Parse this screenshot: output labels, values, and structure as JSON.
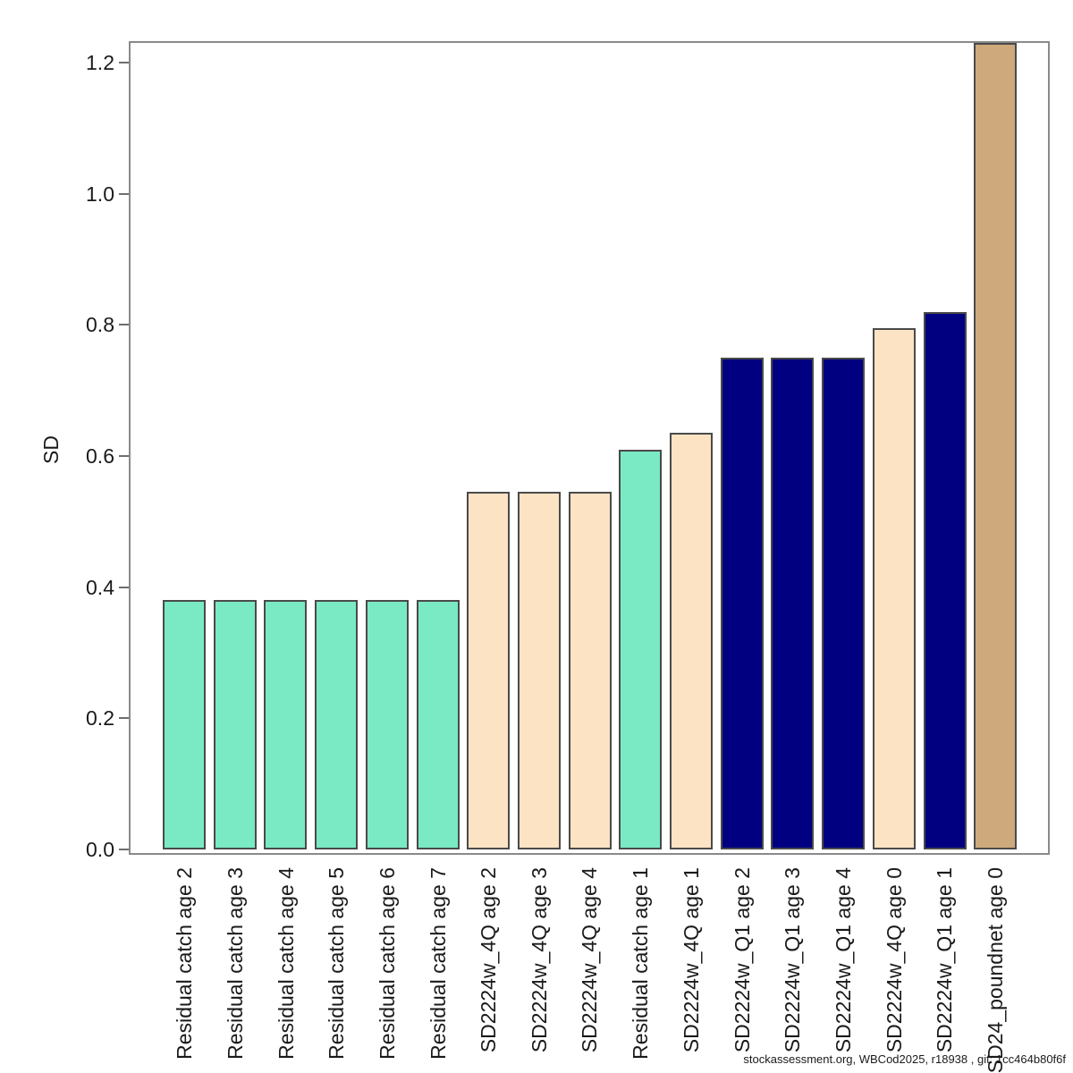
{
  "chart_data": {
    "type": "bar",
    "title": "",
    "xlabel": "",
    "ylabel": "SD",
    "ylim": [
      0,
      1.23
    ],
    "grid": false,
    "legend": null,
    "y_ticks": [
      0.0,
      0.2,
      0.4,
      0.6,
      0.8,
      1.0,
      1.2
    ],
    "y_tick_labels": [
      "0.0",
      "0.2",
      "0.4",
      "0.6",
      "0.8",
      "1.0",
      "1.2"
    ],
    "categories": [
      "Residual catch age 2",
      "Residual catch age 3",
      "Residual catch age 4",
      "Residual catch age 5",
      "Residual catch age 6",
      "Residual catch age 7",
      "SD2224w_4Q age 2",
      "SD2224w_4Q age 3",
      "SD2224w_4Q age 4",
      "Residual catch age 1",
      "SD2224w_4Q age 1",
      "SD2224w_Q1 age 2",
      "SD2224w_Q1 age 3",
      "SD2224w_Q1 age 4",
      "SD2224w_4Q age 0",
      "SD2224w_Q1 age 1",
      "SD24_poundnet age 0"
    ],
    "values": [
      0.38,
      0.38,
      0.38,
      0.38,
      0.38,
      0.38,
      0.545,
      0.545,
      0.545,
      0.61,
      0.635,
      0.75,
      0.75,
      0.75,
      0.795,
      0.82,
      1.23
    ],
    "bar_colors": [
      "#7AEAC4",
      "#7AEAC4",
      "#7AEAC4",
      "#7AEAC4",
      "#7AEAC4",
      "#7AEAC4",
      "#FCE3C3",
      "#FCE3C3",
      "#FCE3C3",
      "#7AEAC4",
      "#FCE3C3",
      "#000080",
      "#000080",
      "#000080",
      "#FCE3C3",
      "#000080",
      "#CDA97C"
    ],
    "color_legend_semantics": {
      "#7AEAC4": "Residual catch fleet",
      "#FCE3C3": "SD2224w_4Q survey",
      "#000080": "SD2224w_Q1 survey",
      "#CDA97C": "SD24_poundnet fleet"
    }
  },
  "footer": {
    "credit": "stockassessment.org, WBCod2025, r18938 , git: 1cc464b80f6f"
  },
  "colors": {
    "bar_border": "#4a4a4a",
    "frame": "#8a8a8a",
    "tick": "#6e6e6e",
    "text": "#1a1a1a"
  }
}
